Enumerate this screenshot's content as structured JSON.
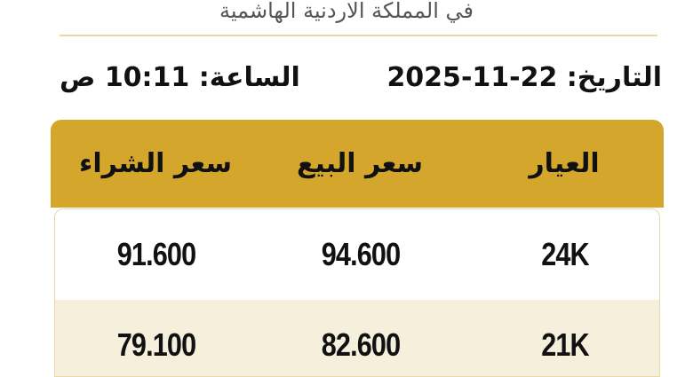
{
  "header": {
    "subtitle": "في المملكة الاردنية الهاشمية",
    "date": "التاريخ: 22-11-2025",
    "time": "الساعة: 10:11 ص"
  },
  "table": {
    "columns": [
      "العيار",
      "سعر البيع",
      "سعر الشراء"
    ],
    "rows": [
      {
        "karat": "24K",
        "sell": "94.600",
        "buy": "91.600"
      },
      {
        "karat": "21K",
        "sell": "82.600",
        "buy": "79.100"
      }
    ]
  },
  "colors": {
    "accent": "#d4a72c",
    "alt_row": "#f6efdc"
  }
}
